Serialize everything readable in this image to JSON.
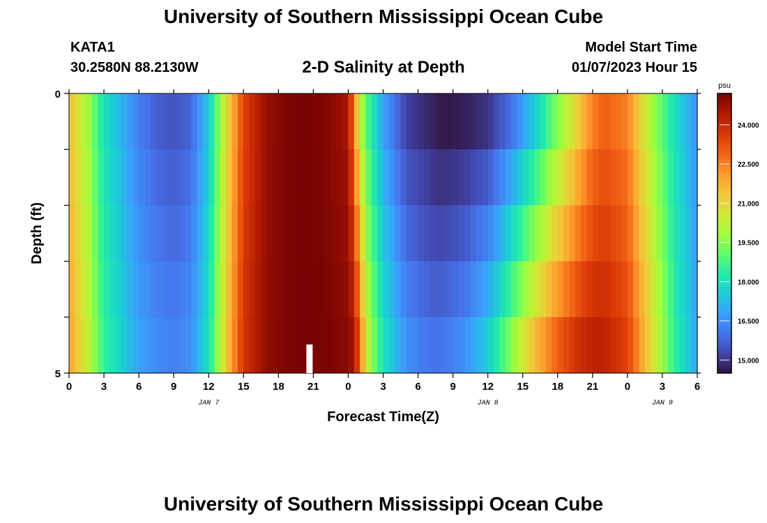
{
  "page": {
    "title": "University of Southern Mississippi Ocean Cube",
    "station": "KATA1",
    "coords": "30.2580N  88.2130W",
    "subtitle": "2-D Salinity at Depth",
    "model_start_label": "Model Start Time",
    "model_start_value": "01/07/2023 Hour 15",
    "bottom_title": "University of Southern Mississippi Ocean Cube"
  },
  "chart_data": {
    "type": "heatmap",
    "title": "2-D Salinity at Depth",
    "xlabel": "Forecast Time(Z)",
    "ylabel": "Depth (ft)",
    "x_tick_labels": [
      "0",
      "3",
      "6",
      "9",
      "12",
      "15",
      "18",
      "21",
      "0",
      "3",
      "6",
      "9",
      "12",
      "15",
      "18",
      "21",
      "0",
      "3",
      "6"
    ],
    "x_day_labels": [
      {
        "label": "JAN 7",
        "hour_index": 12
      },
      {
        "label": "JAN 8",
        "hour_index": 36
      },
      {
        "label": "JAN 9",
        "hour_index": 51
      }
    ],
    "x_range_hours": [
      0,
      54
    ],
    "y_tick_labels": [
      "0",
      "5"
    ],
    "y_range": [
      0,
      5
    ],
    "depth_levels": [
      0,
      1,
      2,
      3,
      4,
      5
    ],
    "colorbar": {
      "unit": "psu",
      "range": [
        14.5,
        25.2
      ],
      "tick_values": [
        "15.000",
        "16.500",
        "18.000",
        "19.500",
        "21.000",
        "22.500",
        "24.000"
      ],
      "colors": [
        "#30123b",
        "#4145ab",
        "#4675ed",
        "#39a2fc",
        "#1bcfd4",
        "#24eca6",
        "#61fc6c",
        "#a4fc3b",
        "#d1e834",
        "#f3c63a",
        "#fe9b2d",
        "#f36315",
        "#d93806",
        "#b11901",
        "#7a0403"
      ]
    },
    "salinity_psu": {
      "hours": [
        0,
        1.5,
        3,
        6,
        7.5,
        9,
        10.5,
        12,
        13.5,
        15,
        17,
        19,
        20.5,
        22,
        24,
        24.5,
        25,
        25.5,
        27,
        29,
        31,
        32,
        34,
        36,
        38,
        40,
        42,
        44,
        45,
        46,
        48,
        50,
        52,
        54
      ],
      "surface": [
        21.5,
        20.0,
        18.0,
        16.2,
        15.7,
        15.5,
        15.8,
        17.5,
        20.8,
        23.5,
        24.8,
        25.2,
        25.2,
        25.1,
        24.6,
        22.5,
        20.5,
        19.0,
        16.8,
        15.2,
        14.8,
        14.6,
        14.7,
        15.0,
        16.0,
        17.5,
        19.5,
        21.5,
        22.5,
        23.0,
        22.5,
        20.0,
        18.0,
        16.5
      ],
      "lower": [
        22.0,
        20.5,
        18.5,
        16.8,
        16.4,
        16.2,
        16.5,
        18.0,
        21.2,
        23.8,
        24.9,
        25.2,
        25.2,
        25.2,
        25.0,
        24.5,
        23.0,
        20.5,
        18.0,
        16.5,
        16.0,
        16.0,
        16.5,
        17.5,
        19.5,
        21.5,
        23.0,
        24.0,
        24.2,
        24.2,
        23.5,
        21.0,
        18.5,
        16.8
      ]
    }
  }
}
